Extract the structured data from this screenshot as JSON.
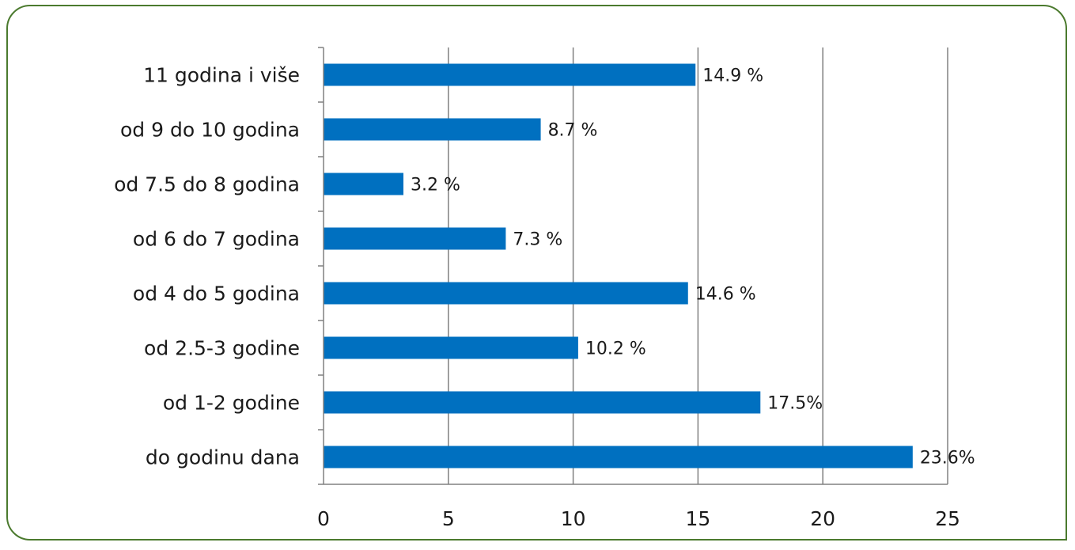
{
  "chart_data": {
    "type": "bar",
    "orientation": "horizontal",
    "categories": [
      "11 godina i više",
      "od 9 do 10 godina",
      "od 7.5 do 8 godina",
      "od 6 do 7 godina",
      "od 4 do 5 godina",
      "od 2.5-3 godine",
      "od 1-2 godine",
      "do godinu dana"
    ],
    "values": [
      14.9,
      8.7,
      3.2,
      7.3,
      14.6,
      10.2,
      17.5,
      23.6
    ],
    "data_labels": [
      "14.9 %",
      "8.7 %",
      "3.2 %",
      "7.3 %",
      "14.6 %",
      "10.2 %",
      "17.5%",
      "23.6%"
    ],
    "xlim": [
      0,
      25
    ],
    "xticks": [
      0,
      5,
      10,
      15,
      20,
      25
    ],
    "xtick_labels": [
      "0",
      "5",
      "10",
      "15",
      "20",
      "25"
    ],
    "grid": true,
    "bar_color": "#0070c0",
    "grid_color": "#808080",
    "title": "",
    "xlabel": "",
    "ylabel": ""
  },
  "frame_color": "#4b7a2e"
}
